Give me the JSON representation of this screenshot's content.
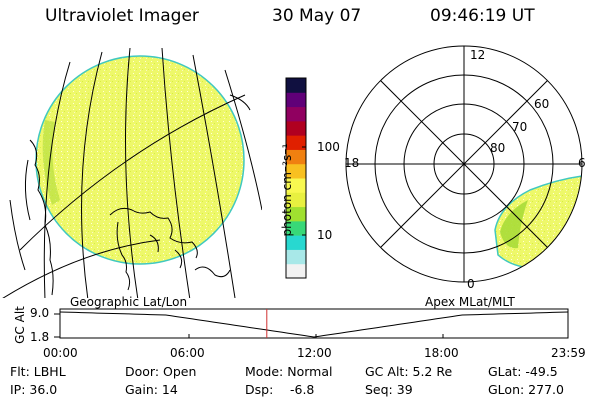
{
  "header": {
    "instrument": "Ultraviolet Imager",
    "date": "30 May 07",
    "time": "09:46:19 UT"
  },
  "colorbar": {
    "unit_label": "photon cm⁻²s⁻¹",
    "tick_100": "100",
    "tick_10": "10",
    "colors": [
      "#f2f2f2",
      "#a8e8e8",
      "#28d8d0",
      "#38d878",
      "#a0e030",
      "#e8f040",
      "#f8f850",
      "#f8c020",
      "#f08010",
      "#e02000",
      "#b00020",
      "#900060",
      "#600078",
      "#101040"
    ]
  },
  "polar_plot": {
    "label_12": "12",
    "label_18": "18",
    "label_6": "6",
    "label_0": "0",
    "lat_60": "60",
    "lat_70": "70",
    "lat_80": "80"
  },
  "projection_labels": {
    "left": "Geographic Lat/Lon",
    "right": "Apex MLat/MLT"
  },
  "altitude_plot": {
    "axis_label": "GC Alt",
    "y_top": "9.0",
    "y_bottom": "1.8",
    "x_ticks": [
      "00:00",
      "06:00",
      "12:00",
      "18:00",
      "23:59"
    ],
    "current_time_marker_hours": 9.77,
    "marker_color": "#d03030"
  },
  "info_rows": [
    [
      "Flt: LBHL",
      "Door: Open",
      "Mode: Normal",
      "GC Alt: 5.2 Re",
      "GLat: -49.5"
    ],
    [
      "IP: 36.0",
      "Gain: 14",
      "Dsp:",
      "Seq: 39",
      "GLon: 277.0"
    ]
  ],
  "dsp_value": "-6.8"
}
